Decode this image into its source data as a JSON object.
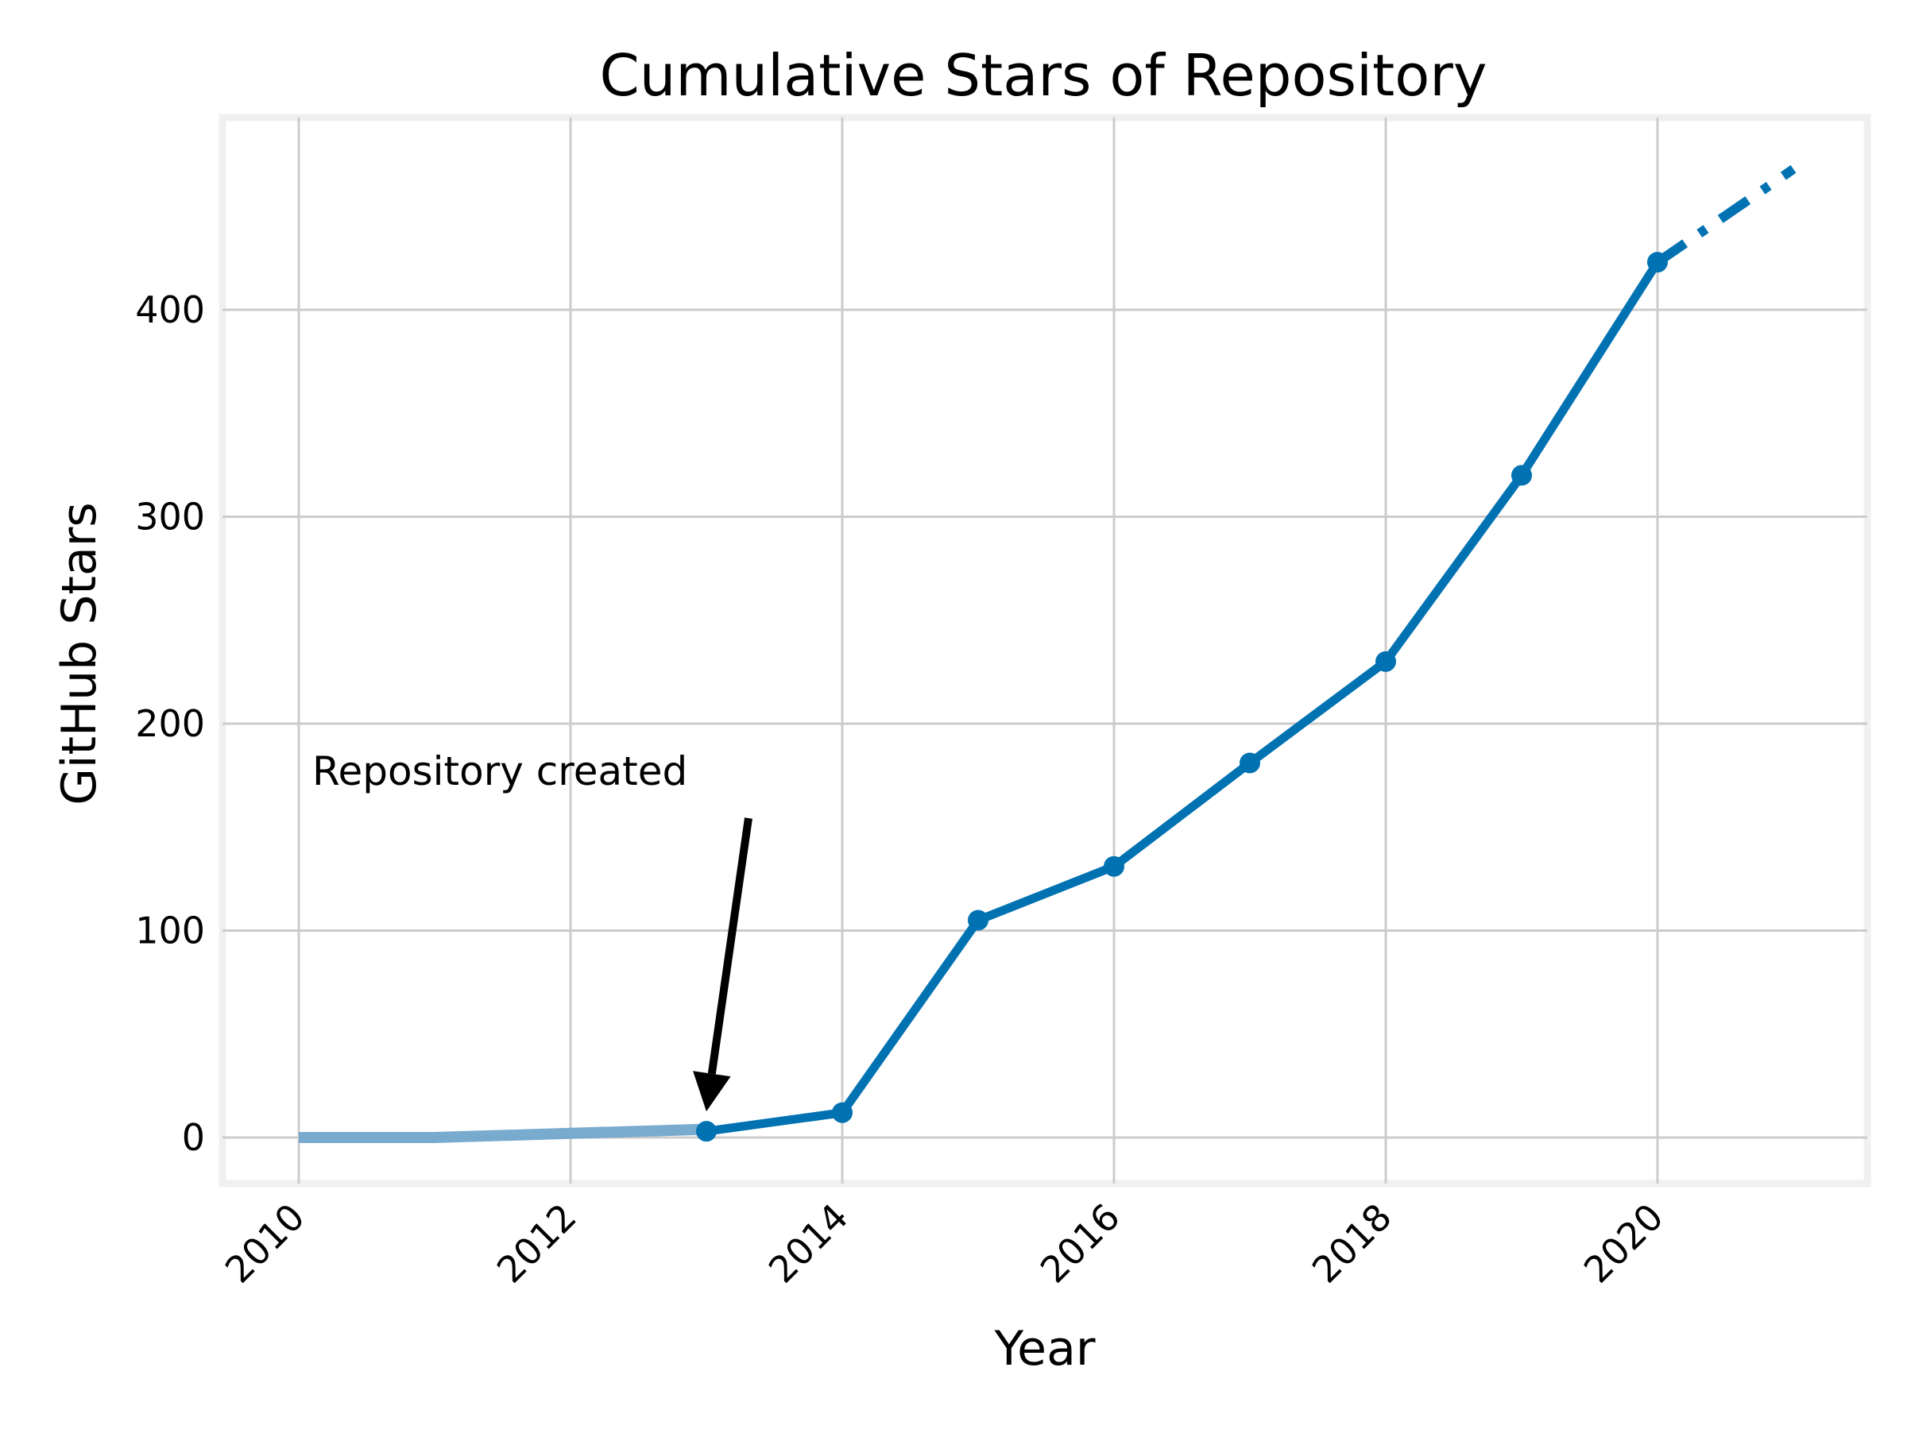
{
  "chart_data": {
    "type": "line",
    "title": "Cumulative Stars of Repository",
    "xlabel": "Year",
    "ylabel": "GitHub Stars",
    "xlim": [
      2009.4,
      2021.5
    ],
    "ylim": [
      -25,
      490
    ],
    "x_ticks": [
      2010,
      2012,
      2014,
      2016,
      2018,
      2020
    ],
    "y_ticks": [
      0,
      100,
      200,
      300,
      400
    ],
    "grid": true,
    "series": [
      {
        "style": "faded",
        "x": [
          2010,
          2011,
          2012,
          2013
        ],
        "y": [
          0,
          0,
          2,
          4
        ],
        "markers": false
      },
      {
        "style": "solid",
        "x": [
          2013,
          2014,
          2015,
          2016,
          2017,
          2018,
          2019,
          2020
        ],
        "y": [
          3,
          12,
          105,
          131,
          181,
          230,
          320,
          423
        ],
        "markers": true
      },
      {
        "style": "dash-dot",
        "x": [
          2020,
          2021
        ],
        "y": [
          423,
          468
        ],
        "markers": false
      }
    ],
    "annotations": [
      {
        "text": "Repository created",
        "target_x": 2013,
        "target_y": 3
      }
    ],
    "colors": {
      "line": "#0072b2",
      "faded": "#72a7cc",
      "grid": "#cccccc",
      "frame": "#f0f0f0",
      "arrow": "#000000"
    }
  }
}
